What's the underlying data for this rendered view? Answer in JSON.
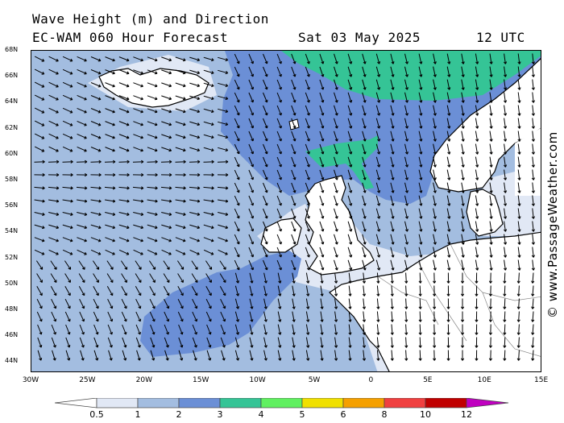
{
  "header": {
    "title": "Wave Height (m) and Direction",
    "model": "EC-WAM 060 Hour Forecast",
    "date": "Sat 03 May 2025",
    "time": "12 UTC"
  },
  "watermark": "© www.PassageWeather.com",
  "map": {
    "lat_labels": [
      "68N",
      "66N",
      "64N",
      "62N",
      "60N",
      "58N",
      "56N",
      "54N",
      "52N",
      "50N",
      "48N",
      "46N",
      "44N"
    ],
    "lon_labels": [
      "30W",
      "25W",
      "20W",
      "15W",
      "10W",
      "5W",
      "0",
      "5E",
      "10E",
      "15E"
    ],
    "extent": {
      "lon": [
        -30,
        15
      ],
      "lat": [
        43.5,
        68
      ]
    }
  },
  "legend": {
    "labels": [
      "0.5",
      "1",
      "2",
      "3",
      "4",
      "5",
      "6",
      "8",
      "10",
      "12"
    ],
    "colors": [
      "#ffffff",
      "#e1e8f5",
      "#a3bde0",
      "#6b8fd6",
      "#35c496",
      "#60f060",
      "#f0e000",
      "#f5a000",
      "#f04040",
      "#c00000",
      "#c000c0"
    ]
  },
  "colors": {
    "land": "#ffffff",
    "sea_lt1": "#e1e8f5",
    "sea_1to2": "#a3bde0",
    "sea_2to3": "#6b8fd6",
    "sea_3to4": "#35c496"
  }
}
